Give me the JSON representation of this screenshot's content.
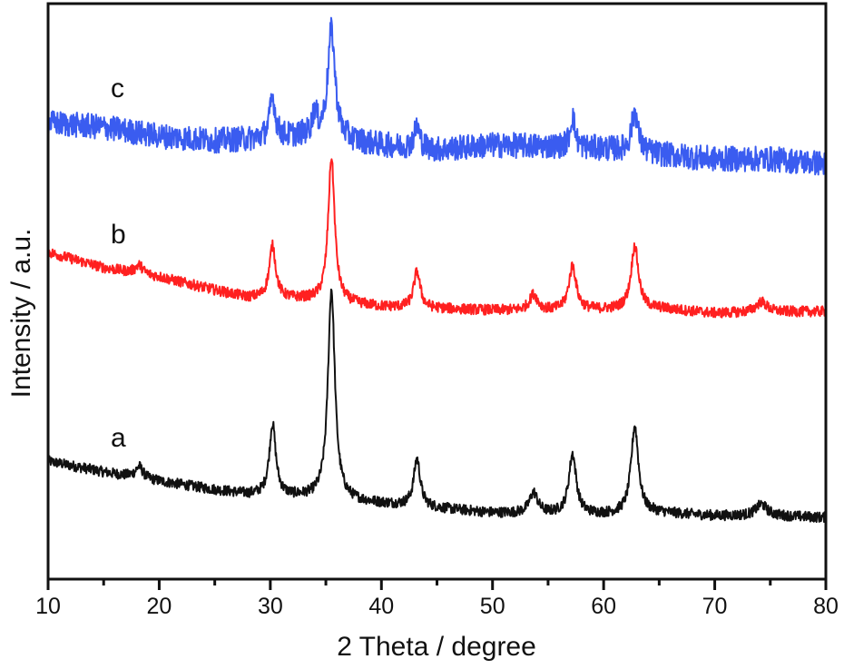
{
  "chart_data": {
    "type": "line",
    "title": "",
    "xlabel": "2 Theta / degree",
    "ylabel": "Intensity / a.u.",
    "xlim": [
      10,
      80
    ],
    "ylim": [
      0,
      100
    ],
    "xticks": [
      10,
      20,
      30,
      40,
      50,
      60,
      70,
      80
    ],
    "x_minor_tick_step": 5,
    "yticks_shown": false,
    "grid": false,
    "legend": "none",
    "series": [
      {
        "name": "a",
        "color": "#111111",
        "noise": 0.9,
        "baseline": [
          [
            10,
            20.5
          ],
          [
            15,
            18.6
          ],
          [
            20,
            17.0
          ],
          [
            25,
            15.5
          ],
          [
            28,
            14.7
          ],
          [
            33,
            14.2
          ],
          [
            40,
            13.1
          ],
          [
            45,
            12.3
          ],
          [
            50,
            11.5
          ],
          [
            55,
            11.3
          ],
          [
            60,
            11.2
          ],
          [
            65,
            11.5
          ],
          [
            70,
            11.0
          ],
          [
            75,
            11.0
          ],
          [
            80,
            10.7
          ]
        ],
        "peaks": [
          [
            18.2,
            2.0,
            0.8
          ],
          [
            30.2,
            12.4,
            0.7
          ],
          [
            35.5,
            36.5,
            0.75
          ],
          [
            43.2,
            8.3,
            0.7
          ],
          [
            53.7,
            3.6,
            0.9
          ],
          [
            57.2,
            10.4,
            0.8
          ],
          [
            62.8,
            15.2,
            0.8
          ],
          [
            74.2,
            2.0,
            1.2
          ]
        ]
      },
      {
        "name": "b",
        "color": "#ff2020",
        "noise": 0.9,
        "baseline": [
          [
            10,
            56.8
          ],
          [
            15,
            54.1
          ],
          [
            20,
            52.5
          ],
          [
            25,
            50.2
          ],
          [
            28,
            48.9
          ],
          [
            33,
            48.6
          ],
          [
            40,
            47.3
          ],
          [
            45,
            47.0
          ],
          [
            50,
            46.7
          ],
          [
            55,
            46.6
          ],
          [
            60,
            46.8
          ],
          [
            65,
            47.0
          ],
          [
            70,
            46.2
          ],
          [
            75,
            46.4
          ],
          [
            80,
            46.5
          ]
        ],
        "peaks": [
          [
            18.2,
            1.5,
            0.8
          ],
          [
            30.2,
            9.1,
            0.7
          ],
          [
            35.5,
            25.1,
            0.7
          ],
          [
            43.2,
            6.3,
            0.7
          ],
          [
            53.7,
            2.8,
            0.9
          ],
          [
            57.2,
            7.7,
            0.8
          ],
          [
            62.8,
            11.0,
            0.8
          ],
          [
            74.2,
            1.8,
            1.2
          ]
        ]
      },
      {
        "name": "c",
        "color": "#3a5cf0",
        "noise": 2.2,
        "baseline": [
          [
            10,
            79.3
          ],
          [
            15,
            78.5
          ],
          [
            20,
            77.0
          ],
          [
            25,
            76.2
          ],
          [
            28,
            76.4
          ],
          [
            33,
            77.0
          ],
          [
            40,
            75.4
          ],
          [
            45,
            74.6
          ],
          [
            50,
            75.4
          ],
          [
            55,
            75.2
          ],
          [
            60,
            74.8
          ],
          [
            65,
            73.8
          ],
          [
            70,
            73.0
          ],
          [
            75,
            73.0
          ],
          [
            80,
            72.2
          ]
        ],
        "peaks": [
          [
            30.2,
            7.0,
            0.6
          ],
          [
            34.0,
            4.0,
            0.5
          ],
          [
            35.5,
            19.0,
            0.8
          ],
          [
            43.2,
            3.8,
            0.6
          ],
          [
            57.2,
            5.5,
            0.5
          ],
          [
            62.8,
            7.0,
            0.7
          ]
        ]
      }
    ]
  }
}
